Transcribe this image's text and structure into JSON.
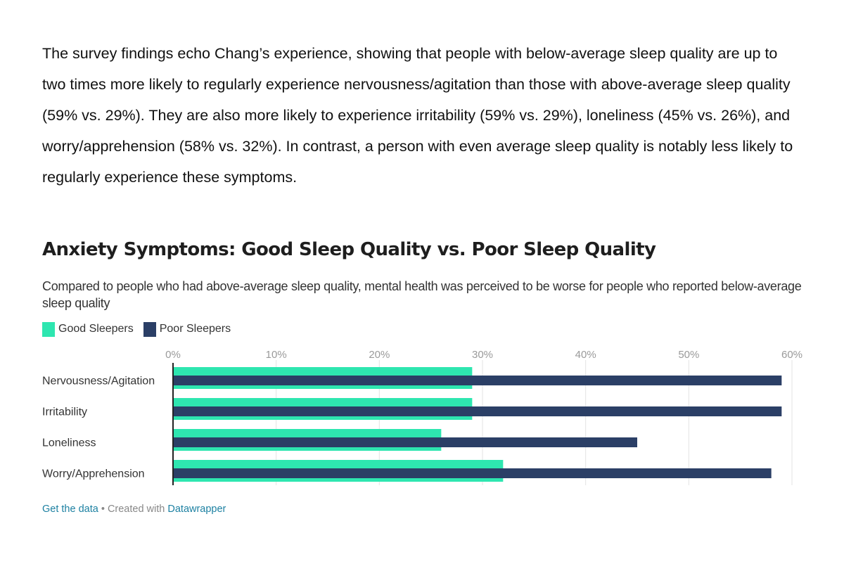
{
  "article": {
    "paragraph": "The survey findings echo Chang’s experience, showing that people with below-average sleep quality are up to two times more likely to regularly experience nervousness/agitation than those with above-average sleep quality (59% vs. 29%). They are also more likely to experience irritability (59% vs. 29%), loneliness (45% vs. 26%), and worry/apprehension (58% vs. 32%). In contrast, a person with even average sleep quality is notably less likely to regularly experience these symptoms."
  },
  "chart_data": {
    "type": "bar",
    "orientation": "horizontal",
    "title": "Anxiety Symptoms: Good Sleep Quality vs. Poor Sleep Quality",
    "subtitle": "Compared to people who had above-average sleep quality, mental health was perceived to be worse for people who reported below-average sleep quality",
    "categories": [
      "Nervousness/Agitation",
      "Irritability",
      "Loneliness",
      "Worry/Apprehension"
    ],
    "series": [
      {
        "name": "Good Sleepers",
        "color": "#2ee6b0",
        "values": [
          29,
          29,
          26,
          32
        ]
      },
      {
        "name": "Poor Sleepers",
        "color": "#2b3f66",
        "values": [
          59,
          59,
          45,
          58
        ]
      }
    ],
    "xlim": [
      0,
      60
    ],
    "xticks": [
      0,
      10,
      20,
      30,
      40,
      50,
      60
    ],
    "tick_labels": [
      "0%",
      "10%",
      "20%",
      "30%",
      "40%",
      "50%",
      "60%"
    ],
    "grid": true,
    "legend_position": "top-left"
  },
  "footer": {
    "get_data": "Get the data",
    "separator": " • Created with ",
    "tool": "Datawrapper"
  }
}
